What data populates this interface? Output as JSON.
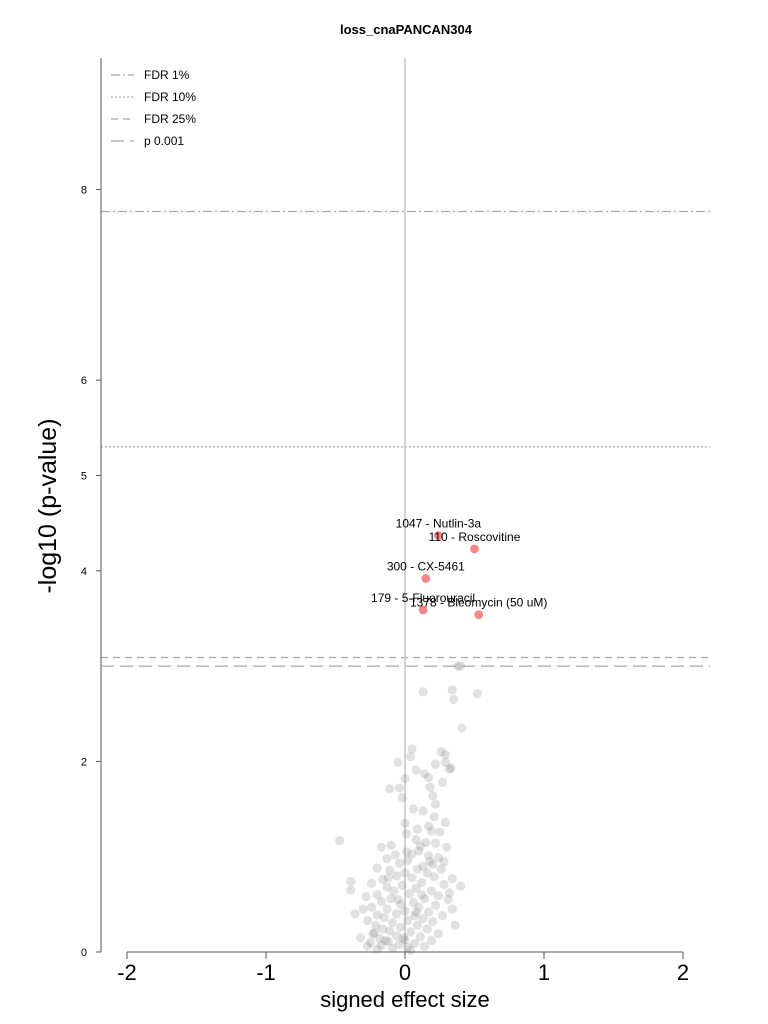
{
  "chart_data": {
    "type": "scatter",
    "title": "loss_cnaPANCAN304",
    "xlabel": "signed effect size",
    "ylabel": "-log10 (p-value)",
    "xlim": [
      -2.2,
      2.2
    ],
    "ylim": [
      0,
      9.4
    ],
    "xticks": [
      -2,
      -1,
      0,
      1,
      2
    ],
    "xtick_labels": [
      "-2",
      "-1",
      "0",
      "1",
      "2"
    ],
    "yticks": [
      0,
      2,
      4,
      5,
      6,
      8
    ],
    "ytick_labels": [
      "0",
      "2",
      "4",
      "5",
      "6",
      "8"
    ],
    "grid": false,
    "legend_position": "top-left",
    "legend": [
      {
        "label": "FDR 1%",
        "style": "dashdot"
      },
      {
        "label": "FDR 10%",
        "style": "dotted"
      },
      {
        "label": "FDR 25%",
        "style": "dashed"
      },
      {
        "label": "p 0.001",
        "style": "longdash"
      }
    ],
    "threshold_lines": [
      {
        "name": "FDR 1%",
        "y": 7.77,
        "style": "dashdot"
      },
      {
        "name": "FDR 10%",
        "y": 5.3,
        "style": "dotted"
      },
      {
        "name": "FDR 25%",
        "y": 3.09,
        "style": "dashed"
      },
      {
        "name": "p 0.001",
        "y": 3.0,
        "style": "longdash"
      }
    ],
    "highlight_color": "#f47a7a",
    "background_point_color": "#777777",
    "highlighted": [
      {
        "x": 0.24,
        "y": 4.37,
        "label": "1047 - Nutlin-3a"
      },
      {
        "x": 0.5,
        "y": 4.23,
        "label": "110 - Roscovitine"
      },
      {
        "x": 0.15,
        "y": 3.92,
        "label": "300 - CX-5461"
      },
      {
        "x": 0.13,
        "y": 3.59,
        "label": "179 - 5-Fluorouracil"
      },
      {
        "x": 0.53,
        "y": 3.54,
        "label": "1378 - Bleomycin (50 uM)"
      }
    ],
    "points": [
      {
        "x": 0.38,
        "y": 3.0
      },
      {
        "x": 0.4,
        "y": 3.0
      },
      {
        "x": 0.13,
        "y": 2.73
      },
      {
        "x": 0.34,
        "y": 2.75
      },
      {
        "x": 0.52,
        "y": 2.71
      },
      {
        "x": 0.35,
        "y": 2.65
      },
      {
        "x": 0.41,
        "y": 2.35
      },
      {
        "x": 0.26,
        "y": 2.1
      },
      {
        "x": 0.05,
        "y": 2.13
      },
      {
        "x": 0.04,
        "y": 2.05
      },
      {
        "x": 0.29,
        "y": 2.07
      },
      {
        "x": 0.29,
        "y": 1.99
      },
      {
        "x": -0.05,
        "y": 1.99
      },
      {
        "x": 0.22,
        "y": 1.97
      },
      {
        "x": 0.33,
        "y": 1.93
      },
      {
        "x": 0.32,
        "y": 1.92
      },
      {
        "x": 0.14,
        "y": 1.87
      },
      {
        "x": 0.17,
        "y": 1.83
      },
      {
        "x": 0.08,
        "y": 1.91
      },
      {
        "x": 0.0,
        "y": 1.82
      },
      {
        "x": -0.11,
        "y": 1.71
      },
      {
        "x": -0.04,
        "y": 1.72
      },
      {
        "x": 0.27,
        "y": 1.78
      },
      {
        "x": 0.18,
        "y": 1.73
      },
      {
        "x": -0.02,
        "y": 1.62
      },
      {
        "x": 0.2,
        "y": 1.64
      },
      {
        "x": 0.22,
        "y": 1.55
      },
      {
        "x": 0.06,
        "y": 1.5
      },
      {
        "x": 0.13,
        "y": 1.48
      },
      {
        "x": 0.21,
        "y": 1.42
      },
      {
        "x": 0.29,
        "y": 1.36
      },
      {
        "x": 0.17,
        "y": 1.32
      },
      {
        "x": 0.09,
        "y": 1.29
      },
      {
        "x": 0.0,
        "y": 1.35
      },
      {
        "x": 0.19,
        "y": 1.27
      },
      {
        "x": 0.25,
        "y": 1.26
      },
      {
        "x": 0.01,
        "y": 1.24
      },
      {
        "x": 0.08,
        "y": 1.18
      },
      {
        "x": -0.47,
        "y": 1.17
      },
      {
        "x": -0.1,
        "y": 1.12
      },
      {
        "x": 0.22,
        "y": 1.14
      },
      {
        "x": -0.17,
        "y": 1.1
      },
      {
        "x": 0.11,
        "y": 1.11
      },
      {
        "x": 0.3,
        "y": 1.1
      },
      {
        "x": 0.01,
        "y": 1.05
      },
      {
        "x": 0.1,
        "y": 1.06
      },
      {
        "x": -0.07,
        "y": 1.02
      },
      {
        "x": 0.05,
        "y": 1.03
      },
      {
        "x": -0.13,
        "y": 0.98
      },
      {
        "x": 0.17,
        "y": 1.01
      },
      {
        "x": 0.24,
        "y": 0.99
      },
      {
        "x": 0.02,
        "y": 0.96
      },
      {
        "x": -0.04,
        "y": 0.93
      },
      {
        "x": 0.2,
        "y": 0.92
      },
      {
        "x": 0.13,
        "y": 0.9
      },
      {
        "x": -0.2,
        "y": 0.88
      },
      {
        "x": 0.09,
        "y": 0.87
      },
      {
        "x": -0.11,
        "y": 0.86
      },
      {
        "x": 0.26,
        "y": 0.87
      },
      {
        "x": 0.0,
        "y": 0.83
      },
      {
        "x": 0.16,
        "y": 0.83
      },
      {
        "x": -0.06,
        "y": 0.8
      },
      {
        "x": 0.21,
        "y": 0.79
      },
      {
        "x": -0.16,
        "y": 0.76
      },
      {
        "x": 0.05,
        "y": 0.78
      },
      {
        "x": 0.34,
        "y": 0.77
      },
      {
        "x": -0.39,
        "y": 0.74
      },
      {
        "x": -0.24,
        "y": 0.72
      },
      {
        "x": 0.12,
        "y": 0.73
      },
      {
        "x": -0.02,
        "y": 0.7
      },
      {
        "x": 0.28,
        "y": 0.71
      },
      {
        "x": 0.4,
        "y": 0.69
      },
      {
        "x": -0.13,
        "y": 0.68
      },
      {
        "x": 0.08,
        "y": 0.67
      },
      {
        "x": -0.39,
        "y": 0.65
      },
      {
        "x": -0.08,
        "y": 0.64
      },
      {
        "x": 0.19,
        "y": 0.64
      },
      {
        "x": -0.2,
        "y": 0.6
      },
      {
        "x": 0.03,
        "y": 0.61
      },
      {
        "x": 0.24,
        "y": 0.59
      },
      {
        "x": -0.28,
        "y": 0.58
      },
      {
        "x": -0.1,
        "y": 0.56
      },
      {
        "x": 0.14,
        "y": 0.56
      },
      {
        "x": 0.31,
        "y": 0.55
      },
      {
        "x": -0.17,
        "y": 0.53
      },
      {
        "x": 0.06,
        "y": 0.52
      },
      {
        "x": -0.03,
        "y": 0.5
      },
      {
        "x": 0.22,
        "y": 0.49
      },
      {
        "x": -0.24,
        "y": 0.47
      },
      {
        "x": 0.1,
        "y": 0.47
      },
      {
        "x": -0.13,
        "y": 0.45
      },
      {
        "x": 0.34,
        "y": 0.45
      },
      {
        "x": 0.0,
        "y": 0.43
      },
      {
        "x": 0.17,
        "y": 0.42
      },
      {
        "x": -0.36,
        "y": 0.4
      },
      {
        "x": -0.2,
        "y": 0.39
      },
      {
        "x": -0.06,
        "y": 0.4
      },
      {
        "x": 0.07,
        "y": 0.38
      },
      {
        "x": 0.27,
        "y": 0.38
      },
      {
        "x": -0.15,
        "y": 0.36
      },
      {
        "x": 0.13,
        "y": 0.35
      },
      {
        "x": -0.27,
        "y": 0.33
      },
      {
        "x": 0.02,
        "y": 0.33
      },
      {
        "x": 0.2,
        "y": 0.32
      },
      {
        "x": -0.09,
        "y": 0.31
      },
      {
        "x": -0.21,
        "y": 0.28
      },
      {
        "x": 0.09,
        "y": 0.28
      },
      {
        "x": 0.36,
        "y": 0.28
      },
      {
        "x": -0.03,
        "y": 0.26
      },
      {
        "x": -0.16,
        "y": 0.24
      },
      {
        "x": 0.16,
        "y": 0.24
      },
      {
        "x": -0.11,
        "y": 0.22
      },
      {
        "x": 0.04,
        "y": 0.21
      },
      {
        "x": -0.23,
        "y": 0.19
      },
      {
        "x": 0.24,
        "y": 0.19
      },
      {
        "x": -0.06,
        "y": 0.17
      },
      {
        "x": 0.11,
        "y": 0.16
      },
      {
        "x": -0.18,
        "y": 0.14
      },
      {
        "x": -0.32,
        "y": 0.15
      },
      {
        "x": 0.0,
        "y": 0.13
      },
      {
        "x": 0.19,
        "y": 0.12
      },
      {
        "x": -0.12,
        "y": 0.11
      },
      {
        "x": -0.25,
        "y": 0.1
      },
      {
        "x": 0.07,
        "y": 0.09
      },
      {
        "x": -0.04,
        "y": 0.08
      },
      {
        "x": -0.17,
        "y": 0.07
      },
      {
        "x": 0.14,
        "y": 0.06
      },
      {
        "x": -0.27,
        "y": 0.06
      },
      {
        "x": 0.02,
        "y": 0.05
      },
      {
        "x": -0.09,
        "y": 0.04
      },
      {
        "x": -0.2,
        "y": 0.03
      },
      {
        "x": 0.04,
        "y": 0.02
      },
      {
        "x": -0.14,
        "y": 0.12
      },
      {
        "x": -0.22,
        "y": 0.2
      },
      {
        "x": 0.12,
        "y": 0.6
      },
      {
        "x": -0.05,
        "y": 0.55
      },
      {
        "x": 0.18,
        "y": 0.95
      },
      {
        "x": -0.12,
        "y": 0.78
      },
      {
        "x": 0.08,
        "y": 0.42
      },
      {
        "x": -0.01,
        "y": 0.15
      },
      {
        "x": 0.28,
        "y": 0.95
      },
      {
        "x": 0.15,
        "y": 1.15
      },
      {
        "x": -0.3,
        "y": 0.45
      },
      {
        "x": 0.32,
        "y": 0.62
      }
    ]
  }
}
